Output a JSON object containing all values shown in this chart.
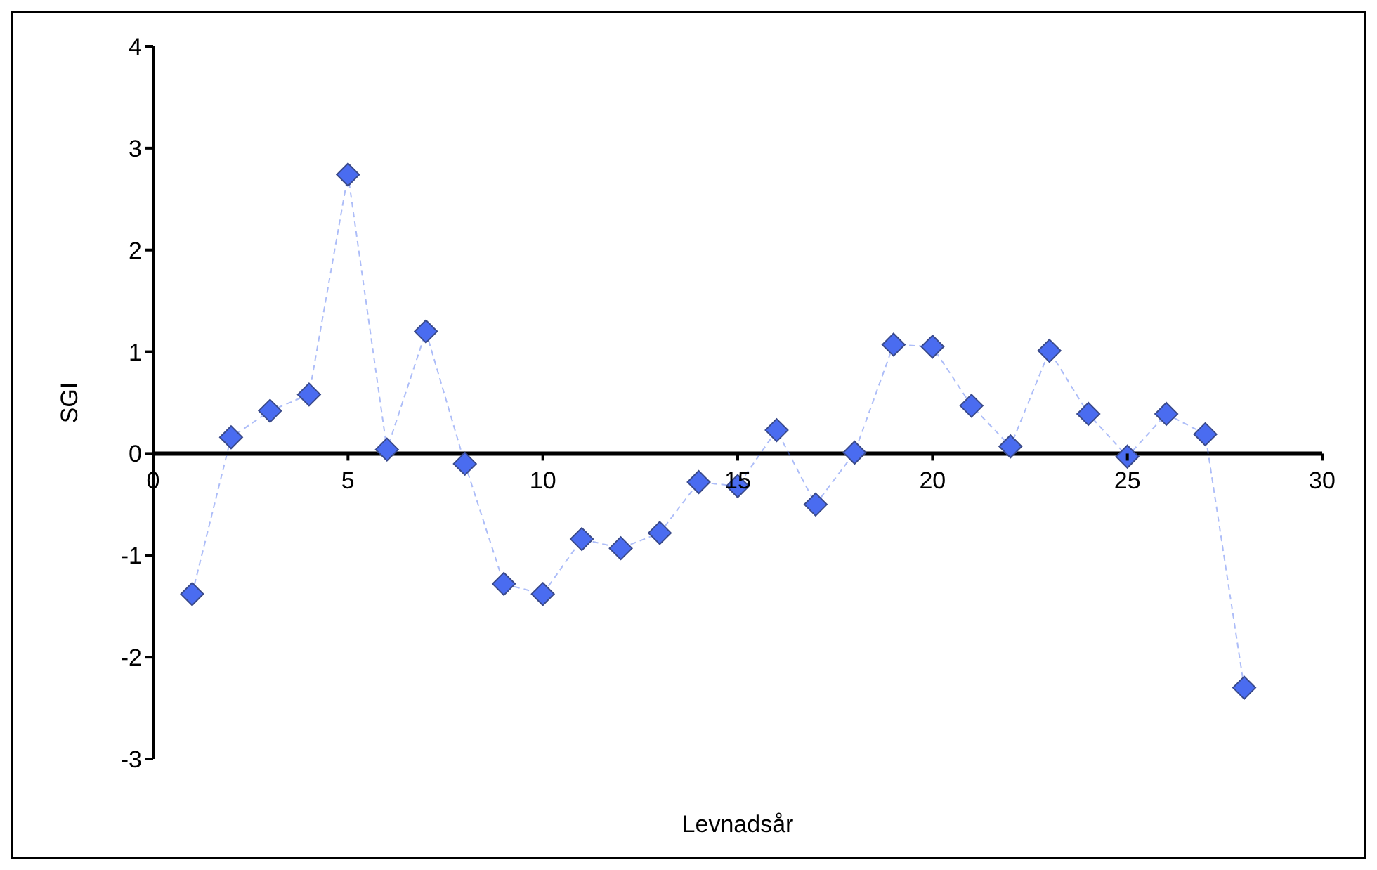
{
  "chart_data": {
    "type": "line",
    "xlabel": "Levnadsår",
    "ylabel": "SGI",
    "x": [
      1,
      2,
      3,
      4,
      5,
      6,
      7,
      8,
      9,
      10,
      11,
      12,
      13,
      14,
      15,
      16,
      17,
      18,
      19,
      20,
      21,
      22,
      23,
      24,
      25,
      26,
      27,
      28
    ],
    "series": [
      {
        "color": "#4a6cf0",
        "values": [
          -1.38,
          0.16,
          0.42,
          0.58,
          2.74,
          0.04,
          1.2,
          -0.1,
          -1.28,
          -1.38,
          -0.84,
          -0.93,
          -0.78,
          -0.28,
          -0.32,
          0.23,
          -0.5,
          0.01,
          1.07,
          1.05,
          0.47,
          0.07,
          1.01,
          0.39,
          -0.03,
          0.39,
          0.19,
          -2.3
        ]
      }
    ],
    "xlim": [
      0,
      30
    ],
    "xticks": [
      0,
      5,
      10,
      15,
      20,
      25,
      30
    ],
    "ylim": [
      -3,
      4
    ],
    "yticks": [
      -3,
      -2,
      -1,
      0,
      1,
      2,
      3,
      4
    ],
    "grid": false,
    "legend": false,
    "marker": "diamond",
    "line_style": "dashed"
  }
}
